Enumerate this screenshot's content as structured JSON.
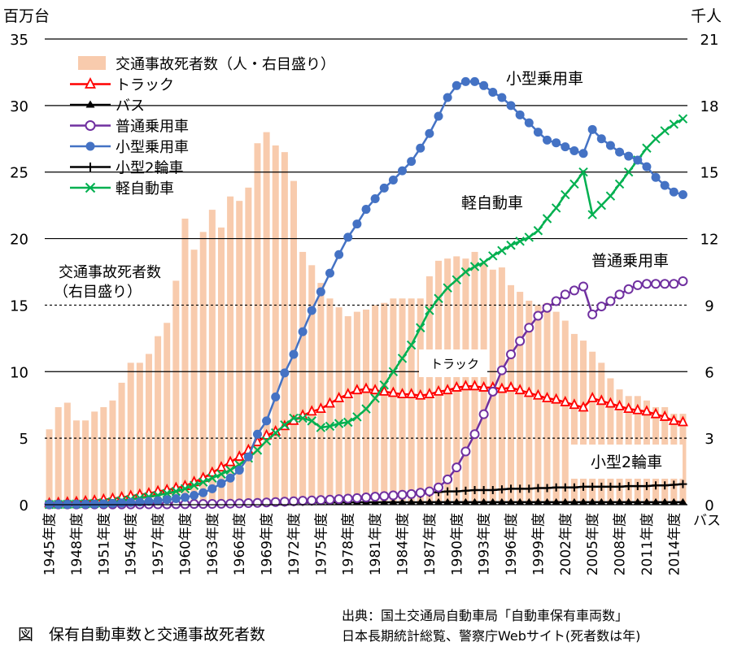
{
  "caption": "図　保有自動車数と交通事故死者数",
  "source_line1": "出典：国土交通局自動車局「自動車保有車両数」",
  "source_line2": "日本長期統計総覧、警察庁Webサイト(死者数は年)",
  "chart_data": {
    "type": "bar+line",
    "left_axis": {
      "unit": "百万台",
      "ticks": [
        0,
        5,
        10,
        15,
        20,
        25,
        30,
        35
      ],
      "range": [
        0,
        35
      ]
    },
    "right_axis": {
      "unit": "千人",
      "ticks": [
        0,
        3,
        6,
        9,
        12,
        15,
        18,
        21
      ],
      "range": [
        0,
        21
      ]
    },
    "years": [
      1945,
      1946,
      1947,
      1948,
      1949,
      1950,
      1951,
      1952,
      1953,
      1954,
      1955,
      1956,
      1957,
      1958,
      1959,
      1960,
      1961,
      1962,
      1963,
      1964,
      1965,
      1966,
      1967,
      1968,
      1969,
      1970,
      1971,
      1972,
      1973,
      1974,
      1975,
      1976,
      1977,
      1978,
      1979,
      1980,
      1981,
      1982,
      1983,
      1984,
      1985,
      1986,
      1987,
      1988,
      1989,
      1990,
      1991,
      1992,
      1993,
      1994,
      1995,
      1996,
      1997,
      1998,
      1999,
      2000,
      2001,
      2002,
      2003,
      2004,
      2005,
      2006,
      2007,
      2008,
      2009,
      2010,
      2011,
      2012,
      2013,
      2014,
      2015
    ],
    "x_tick_labels": [
      "1945年度",
      "1948年度",
      "1951年度",
      "1954年度",
      "1957年度",
      "1960年度",
      "1963年度",
      "1966年度",
      "1969年度",
      "1972年度",
      "1975年度",
      "1978年度",
      "1981年度",
      "1984年度",
      "1987年度",
      "1990年度",
      "1993年度",
      "1996年度",
      "1999年度",
      "2002年度",
      "2005年度",
      "2008年度",
      "2011年度",
      "2014年度"
    ],
    "legend": {
      "placement": "top-left",
      "entries": [
        "交通事故死者数（人・右目盛り）",
        "トラック",
        "バス",
        "普通乗用車",
        "小型乗用車",
        "小型2輪車",
        "軽自動車"
      ]
    },
    "annotations": {
      "small_car": "小型乗用車",
      "kei": "軽自動車",
      "normal_car": "普通乗用車",
      "fatalities_1": "交通事故死者数",
      "fatalities_2": "（右目盛り）",
      "truck": "トラック",
      "motorcycle": "小型2輪車",
      "bus": "バス"
    },
    "fatalities": {
      "name": "交通事故死者数（人・右目盛り）",
      "axis": "right",
      "color": "#f8cbad",
      "values": [
        3.4,
        4.4,
        4.6,
        3.8,
        3.8,
        4.2,
        4.4,
        4.7,
        5.5,
        6.4,
        6.4,
        6.8,
        7.6,
        8.2,
        10.1,
        12.9,
        11.5,
        12.3,
        13.3,
        12.5,
        13.9,
        13.7,
        14.3,
        16.3,
        16.8,
        16.2,
        15.9,
        14.6,
        11.4,
        10.8,
        10.0,
        9.3,
        8.9,
        8.5,
        8.7,
        8.8,
        9.0,
        9.1,
        9.3,
        9.3,
        9.3,
        9.3,
        10.3,
        11.0,
        11.1,
        11.2,
        11.1,
        11.4,
        10.9,
        10.6,
        10.7,
        9.9,
        9.6,
        9.2,
        9.0,
        9.1,
        8.7,
        8.3,
        7.7,
        7.4,
        6.9,
        6.4,
        5.7,
        5.2,
        4.9,
        4.9,
        4.7,
        4.4,
        4.4,
        4.1,
        4.1
      ]
    },
    "series": [
      {
        "name": "トラック",
        "axis": "left",
        "color": "#ff0000",
        "marker": "open-triangle",
        "values": [
          0.1,
          0.14,
          0.17,
          0.2,
          0.25,
          0.3,
          0.38,
          0.45,
          0.55,
          0.65,
          0.75,
          0.85,
          1.0,
          1.1,
          1.25,
          1.4,
          1.7,
          2.0,
          2.4,
          2.8,
          3.2,
          3.6,
          4.1,
          4.7,
          5.2,
          5.5,
          5.9,
          6.3,
          6.7,
          7.0,
          7.2,
          7.6,
          8.0,
          8.3,
          8.6,
          8.7,
          8.6,
          8.5,
          8.4,
          8.3,
          8.3,
          8.2,
          8.3,
          8.5,
          8.6,
          8.8,
          8.9,
          8.9,
          8.8,
          8.8,
          8.7,
          8.8,
          8.6,
          8.4,
          8.2,
          8.0,
          7.9,
          7.7,
          7.5,
          7.3,
          8.0,
          7.8,
          7.6,
          7.4,
          7.2,
          7.1,
          7.0,
          6.8,
          6.6,
          6.3,
          6.2
        ]
      },
      {
        "name": "バス",
        "axis": "left",
        "color": "#000000",
        "marker": "filled-triangle",
        "values": [
          0.02,
          0.02,
          0.03,
          0.03,
          0.03,
          0.03,
          0.04,
          0.04,
          0.05,
          0.05,
          0.05,
          0.05,
          0.06,
          0.06,
          0.07,
          0.07,
          0.08,
          0.09,
          0.09,
          0.1,
          0.1,
          0.11,
          0.12,
          0.12,
          0.13,
          0.13,
          0.14,
          0.15,
          0.15,
          0.16,
          0.16,
          0.17,
          0.17,
          0.17,
          0.18,
          0.18,
          0.18,
          0.18,
          0.18,
          0.18,
          0.18,
          0.18,
          0.19,
          0.19,
          0.19,
          0.19,
          0.19,
          0.19,
          0.19,
          0.19,
          0.19,
          0.19,
          0.19,
          0.19,
          0.19,
          0.19,
          0.19,
          0.19,
          0.19,
          0.19,
          0.19,
          0.19,
          0.19,
          0.19,
          0.19,
          0.19,
          0.19,
          0.19,
          0.19,
          0.19,
          0.19
        ]
      },
      {
        "name": "普通乗用車",
        "axis": "left",
        "color": "#7030a0",
        "marker": "open-circle",
        "values": [
          0.02,
          0.02,
          0.02,
          0.02,
          0.02,
          0.02,
          0.02,
          0.02,
          0.02,
          0.02,
          0.02,
          0.03,
          0.03,
          0.03,
          0.04,
          0.04,
          0.05,
          0.05,
          0.06,
          0.07,
          0.08,
          0.1,
          0.12,
          0.14,
          0.17,
          0.2,
          0.23,
          0.26,
          0.3,
          0.32,
          0.35,
          0.38,
          0.42,
          0.46,
          0.5,
          0.55,
          0.6,
          0.65,
          0.7,
          0.75,
          0.8,
          0.9,
          1.0,
          1.3,
          1.9,
          2.8,
          4.0,
          5.3,
          6.8,
          8.5,
          10.1,
          11.3,
          12.3,
          13.3,
          14.2,
          14.8,
          15.3,
          15.8,
          16.1,
          16.4,
          14.3,
          14.9,
          15.3,
          15.8,
          16.2,
          16.5,
          16.6,
          16.6,
          16.6,
          16.6,
          16.8
        ]
      },
      {
        "name": "小型乗用車",
        "axis": "left",
        "color": "#4472c4",
        "marker": "filled-circle",
        "values": [
          0.02,
          0.02,
          0.02,
          0.03,
          0.04,
          0.05,
          0.07,
          0.1,
          0.13,
          0.17,
          0.2,
          0.25,
          0.3,
          0.38,
          0.46,
          0.55,
          0.7,
          0.9,
          1.2,
          1.6,
          2.0,
          2.6,
          3.6,
          5.3,
          6.3,
          8.1,
          9.9,
          11.3,
          13.0,
          14.6,
          16.0,
          17.4,
          18.8,
          20.1,
          21.1,
          22.2,
          23.0,
          23.8,
          24.4,
          25.1,
          25.8,
          26.8,
          27.9,
          29.2,
          30.6,
          31.5,
          31.8,
          31.8,
          31.5,
          31.0,
          30.6,
          30.0,
          29.3,
          28.7,
          28.0,
          27.4,
          27.2,
          26.9,
          26.6,
          26.4,
          28.2,
          27.5,
          27.0,
          26.5,
          26.2,
          25.9,
          25.4,
          24.6,
          24.0,
          23.5,
          23.3
        ]
      },
      {
        "name": "小型2輪車",
        "axis": "left",
        "color": "#000000",
        "marker": "plus",
        "values": [
          0.01,
          0.01,
          0.01,
          0.01,
          0.01,
          0.02,
          0.02,
          0.03,
          0.04,
          0.04,
          0.05,
          0.05,
          0.06,
          0.06,
          0.06,
          0.07,
          0.07,
          0.08,
          0.09,
          0.1,
          0.1,
          0.1,
          0.11,
          0.12,
          0.13,
          0.15,
          0.17,
          0.2,
          0.22,
          0.24,
          0.27,
          0.3,
          0.33,
          0.37,
          0.42,
          0.48,
          0.55,
          0.6,
          0.65,
          0.7,
          0.75,
          0.8,
          0.9,
          0.95,
          1.0,
          1.0,
          1.05,
          1.1,
          1.1,
          1.1,
          1.15,
          1.2,
          1.2,
          1.2,
          1.25,
          1.25,
          1.3,
          1.3,
          1.3,
          1.35,
          1.35,
          1.35,
          1.35,
          1.35,
          1.4,
          1.4,
          1.4,
          1.45,
          1.45,
          1.5,
          1.55
        ]
      },
      {
        "name": "軽自動車",
        "axis": "left",
        "color": "#00b050",
        "marker": "x",
        "values": [
          0.01,
          0.02,
          0.03,
          0.05,
          0.07,
          0.1,
          0.15,
          0.22,
          0.3,
          0.4,
          0.5,
          0.6,
          0.7,
          0.85,
          1.0,
          1.2,
          1.45,
          1.7,
          2.0,
          2.3,
          2.6,
          3.0,
          3.5,
          4.1,
          4.8,
          5.4,
          6.0,
          6.5,
          6.5,
          6.3,
          5.8,
          5.9,
          6.1,
          6.2,
          6.6,
          7.2,
          8.0,
          9.0,
          10.0,
          11.0,
          12.0,
          13.3,
          14.6,
          15.5,
          16.3,
          16.9,
          17.5,
          17.9,
          18.2,
          18.7,
          19.1,
          19.5,
          19.8,
          20.1,
          20.6,
          21.5,
          22.3,
          23.3,
          24.1,
          25.0,
          21.8,
          22.5,
          23.2,
          24.1,
          25.0,
          25.9,
          26.8,
          27.5,
          28.1,
          28.6,
          29.0
        ]
      }
    ]
  }
}
